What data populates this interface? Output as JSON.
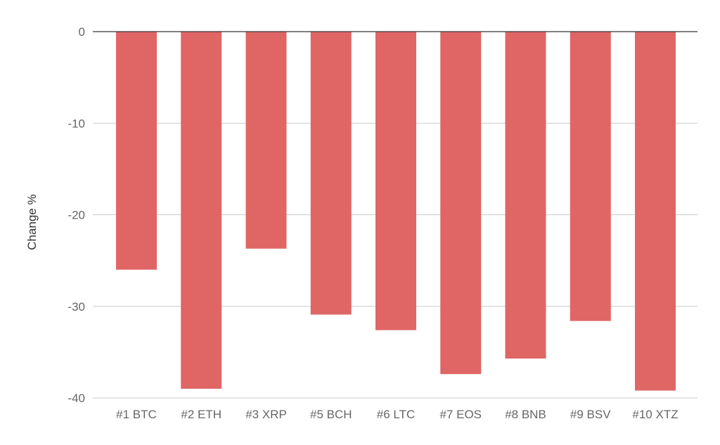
{
  "chart_data": {
    "type": "bar",
    "title": "",
    "xlabel": "",
    "ylabel": "Change %",
    "categories": [
      "#1 BTC",
      "#2 ETH",
      "#3 XRP",
      "#5 BCH",
      "#6 LTC",
      "#7 EOS",
      "#8 BNB",
      "#9 BSV",
      "#10 XTZ"
    ],
    "values": [
      -26.0,
      -39.0,
      -23.7,
      -30.9,
      -32.6,
      -37.4,
      -35.7,
      -31.6,
      -39.2
    ],
    "ylim": [
      -40,
      0
    ],
    "yticks": [
      0,
      -10,
      -20,
      -30,
      -40
    ],
    "grid": true,
    "colors": {
      "bar": "#e06666",
      "grid": "#cccccc",
      "zero_line": "#333333"
    }
  }
}
